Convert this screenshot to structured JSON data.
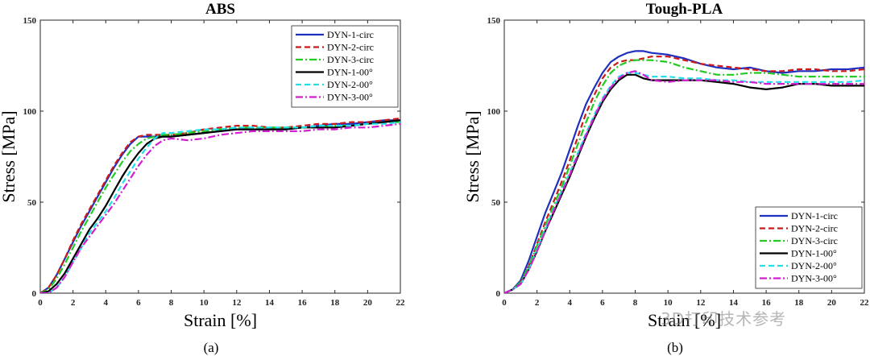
{
  "figure": {
    "watermark": "3D打印技术参考"
  },
  "series_styles": [
    {
      "name": "DYN-1-circ",
      "color": "#1f2fbf",
      "dash": ""
    },
    {
      "name": "DYN-2-circ",
      "color": "#cc1a1a",
      "dash": "7,4"
    },
    {
      "name": "DYN-3-circ",
      "color": "#22cc22",
      "dash": "9,3,2,3"
    },
    {
      "name": "DYN-1-00°",
      "color": "#000000",
      "dash": ""
    },
    {
      "name": "DYN-2-00°",
      "color": "#22e0e8",
      "dash": "7,4"
    },
    {
      "name": "DYN-3-00°",
      "color": "#d21fd2",
      "dash": "9,3,2,3"
    }
  ],
  "chart_data": [
    {
      "type": "line",
      "title": "ABS",
      "panel_label": "(a)",
      "xlabel": "Strain [%]",
      "ylabel": "Stress [MPa]",
      "xlim": [
        0,
        22
      ],
      "ylim": [
        0,
        150
      ],
      "xticks": [
        0,
        2,
        4,
        6,
        8,
        10,
        12,
        14,
        16,
        18,
        20,
        22
      ],
      "yticks": [
        0,
        50,
        100,
        150
      ],
      "legend_position": "top-right",
      "series": [
        {
          "name": "DYN-1-circ",
          "x": [
            0,
            0.5,
            1,
            1.5,
            2,
            2.5,
            3,
            3.5,
            4,
            4.5,
            5,
            5.5,
            6,
            6.5,
            7,
            7.5,
            8,
            9,
            10,
            11,
            12,
            13,
            14,
            15,
            16,
            17,
            18,
            19,
            20,
            21,
            22
          ],
          "y": [
            0,
            3,
            10,
            19,
            28,
            37,
            45,
            53,
            61,
            69,
            76,
            82,
            86,
            86,
            86,
            86,
            86,
            87,
            88,
            89,
            90,
            90,
            90,
            90,
            91,
            92,
            93,
            93,
            94,
            95,
            95
          ]
        },
        {
          "name": "DYN-2-circ",
          "x": [
            0,
            0.5,
            1,
            1.5,
            2,
            2.5,
            3,
            3.5,
            4,
            4.5,
            5,
            5.5,
            6,
            6.5,
            7,
            7.5,
            8,
            9,
            10,
            11,
            12,
            13,
            14,
            15,
            16,
            17,
            18,
            19,
            20,
            21,
            22
          ],
          "y": [
            0,
            3,
            10,
            19,
            29,
            38,
            46,
            54,
            62,
            70,
            77,
            83,
            86,
            87,
            87,
            87,
            87,
            88,
            90,
            91,
            92,
            92,
            91,
            91,
            92,
            93,
            93,
            94,
            94,
            95,
            96
          ]
        },
        {
          "name": "DYN-3-circ",
          "x": [
            0,
            0.5,
            1,
            1.5,
            2,
            2.5,
            3,
            3.5,
            4,
            4.5,
            5,
            5.5,
            6,
            6.5,
            7,
            7.5,
            8,
            9,
            10,
            11,
            12,
            13,
            14,
            15,
            16,
            17,
            18,
            19,
            20,
            21,
            22
          ],
          "y": [
            0,
            2,
            8,
            16,
            25,
            34,
            42,
            50,
            58,
            65,
            72,
            78,
            82,
            85,
            86,
            87,
            87,
            88,
            89,
            90,
            91,
            91,
            91,
            91,
            91,
            91,
            92,
            92,
            93,
            94,
            94
          ]
        },
        {
          "name": "DYN-1-00°",
          "x": [
            0,
            0.5,
            1,
            1.5,
            2,
            2.5,
            3,
            3.5,
            4,
            4.5,
            5,
            5.5,
            6,
            6.5,
            7,
            7.5,
            8,
            9,
            10,
            11,
            12,
            13,
            14,
            15,
            16,
            17,
            18,
            19,
            20,
            21,
            22
          ],
          "y": [
            0,
            1,
            5,
            11,
            19,
            27,
            35,
            41,
            48,
            56,
            64,
            71,
            77,
            82,
            85,
            86,
            86,
            87,
            88,
            89,
            90,
            90,
            90,
            90,
            91,
            91,
            91,
            92,
            93,
            94,
            95
          ]
        },
        {
          "name": "DYN-2-00°",
          "x": [
            0,
            0.5,
            1,
            1.5,
            2,
            2.5,
            3,
            3.5,
            4,
            4.5,
            5,
            5.5,
            6,
            6.5,
            7,
            7.5,
            8,
            9,
            10,
            11,
            12,
            13,
            14,
            15,
            16,
            17,
            18,
            19,
            20,
            21,
            22
          ],
          "y": [
            0,
            0,
            3,
            9,
            17,
            25,
            33,
            39,
            45,
            52,
            60,
            67,
            74,
            80,
            85,
            88,
            88,
            89,
            90,
            90,
            91,
            91,
            91,
            91,
            91,
            92,
            92,
            92,
            93,
            93,
            94
          ]
        },
        {
          "name": "DYN-3-00°",
          "x": [
            0,
            0.5,
            1,
            1.5,
            2,
            2.5,
            3,
            3.5,
            4,
            4.5,
            5,
            5.5,
            6,
            6.5,
            7,
            7.5,
            8,
            9,
            10,
            11,
            12,
            13,
            14,
            15,
            16,
            17,
            18,
            19,
            20,
            21,
            22
          ],
          "y": [
            0,
            0,
            3,
            9,
            17,
            25,
            31,
            37,
            43,
            49,
            56,
            63,
            70,
            76,
            81,
            84,
            85,
            84,
            85,
            87,
            88,
            89,
            89,
            89,
            89,
            90,
            90,
            91,
            91,
            92,
            93
          ]
        }
      ]
    },
    {
      "type": "line",
      "title": "Tough-PLA",
      "panel_label": "(b)",
      "xlabel": "Strain [%]",
      "ylabel": "Stress [MPa]",
      "xlim": [
        0,
        22
      ],
      "ylim": [
        0,
        150
      ],
      "xticks": [
        0,
        2,
        4,
        6,
        8,
        10,
        12,
        14,
        16,
        18,
        20,
        22
      ],
      "yticks": [
        0,
        50,
        100,
        150
      ],
      "legend_position": "bottom-right",
      "series": [
        {
          "name": "DYN-1-circ",
          "x": [
            0,
            0.5,
            1,
            1.5,
            2,
            2.5,
            3,
            3.5,
            4,
            4.5,
            5,
            5.5,
            6,
            6.5,
            7,
            7.5,
            8,
            8.5,
            9,
            10,
            11,
            12,
            13,
            14,
            15,
            16,
            17,
            18,
            19,
            20,
            21,
            22
          ],
          "y": [
            0,
            2,
            7,
            18,
            31,
            44,
            55,
            66,
            79,
            92,
            104,
            113,
            121,
            127,
            130,
            132,
            133,
            133,
            132,
            131,
            129,
            126,
            124,
            123,
            124,
            122,
            121,
            122,
            122,
            123,
            123,
            124
          ]
        },
        {
          "name": "DYN-2-circ",
          "x": [
            0,
            0.5,
            1,
            1.5,
            2,
            2.5,
            3,
            3.5,
            4,
            4.5,
            5,
            5.5,
            6,
            6.5,
            7,
            7.5,
            8,
            8.5,
            9,
            10,
            11,
            12,
            13,
            14,
            15,
            16,
            17,
            18,
            19,
            20,
            21,
            22
          ],
          "y": [
            0,
            2,
            6,
            15,
            27,
            39,
            50,
            61,
            73,
            86,
            99,
            109,
            118,
            124,
            127,
            128,
            128,
            129,
            130,
            130,
            128,
            126,
            125,
            124,
            123,
            122,
            122,
            123,
            123,
            122,
            122,
            123
          ]
        },
        {
          "name": "DYN-3-circ",
          "x": [
            0,
            0.5,
            1,
            1.5,
            2,
            2.5,
            3,
            3.5,
            4,
            4.5,
            5,
            5.5,
            6,
            6.5,
            7,
            7.5,
            8,
            8.5,
            9,
            10,
            11,
            12,
            13,
            14,
            15,
            16,
            17,
            18,
            19,
            20,
            21,
            22
          ],
          "y": [
            0,
            2,
            6,
            15,
            26,
            37,
            48,
            58,
            70,
            82,
            94,
            105,
            114,
            121,
            125,
            127,
            128,
            128,
            128,
            127,
            124,
            122,
            120,
            120,
            121,
            121,
            120,
            119,
            119,
            119,
            119,
            119
          ]
        },
        {
          "name": "DYN-1-00°",
          "x": [
            0,
            0.5,
            1,
            1.5,
            2,
            2.5,
            3,
            3.5,
            4,
            4.5,
            5,
            5.5,
            6,
            6.5,
            7,
            7.5,
            8,
            8.5,
            9,
            10,
            11,
            12,
            13,
            14,
            15,
            16,
            17,
            18,
            19,
            20,
            21,
            22
          ],
          "y": [
            0,
            2,
            5,
            13,
            23,
            34,
            44,
            54,
            64,
            75,
            86,
            96,
            105,
            112,
            117,
            120,
            120,
            118,
            117,
            117,
            117,
            117,
            116,
            115,
            113,
            112,
            113,
            115,
            115,
            114,
            114,
            114
          ]
        },
        {
          "name": "DYN-2-00°",
          "x": [
            0,
            0.5,
            1,
            1.5,
            2,
            2.5,
            3,
            3.5,
            4,
            4.5,
            5,
            5.5,
            6,
            6.5,
            7,
            7.5,
            8,
            8.5,
            9,
            10,
            11,
            12,
            13,
            14,
            15,
            16,
            17,
            18,
            19,
            20,
            21,
            22
          ],
          "y": [
            0,
            2,
            5,
            13,
            24,
            35,
            46,
            56,
            66,
            77,
            88,
            98,
            107,
            114,
            119,
            121,
            121,
            120,
            119,
            119,
            118,
            118,
            117,
            117,
            116,
            116,
            116,
            116,
            116,
            116,
            116,
            117
          ]
        },
        {
          "name": "DYN-3-00°",
          "x": [
            0,
            0.5,
            1,
            1.5,
            2,
            2.5,
            3,
            3.5,
            4,
            4.5,
            5,
            5.5,
            6,
            6.5,
            7,
            7.5,
            8,
            8.5,
            9,
            10,
            11,
            12,
            13,
            14,
            15,
            16,
            17,
            18,
            19,
            20,
            21,
            22
          ],
          "y": [
            0,
            2,
            5,
            13,
            23,
            34,
            45,
            55,
            65,
            76,
            87,
            97,
            106,
            113,
            118,
            121,
            122,
            120,
            117,
            116,
            117,
            117,
            117,
            116,
            116,
            115,
            115,
            115,
            115,
            115,
            115,
            115
          ]
        }
      ]
    }
  ]
}
